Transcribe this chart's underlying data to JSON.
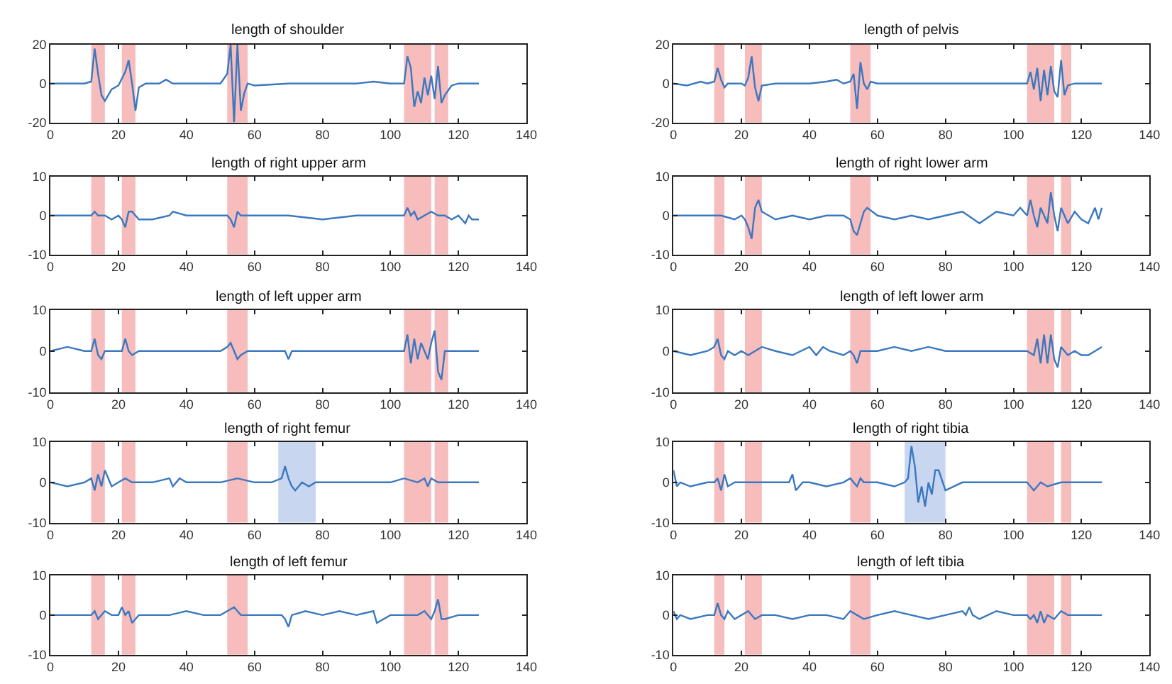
{
  "chart_data": [
    {
      "type": "line",
      "title": "length of shoulder",
      "xlim": [
        0,
        140
      ],
      "xticks": [
        0,
        20,
        40,
        60,
        80,
        100,
        120,
        140
      ],
      "ylim": [
        -20,
        20
      ],
      "yticks": [
        -20,
        0,
        20
      ],
      "bands": [
        {
          "axis": "x",
          "from": 12,
          "to": 16,
          "color": "#f7bcbc"
        },
        {
          "axis": "x",
          "from": 21,
          "to": 25,
          "color": "#f7bcbc"
        },
        {
          "axis": "x",
          "from": 52,
          "to": 58,
          "color": "#f7bcbc"
        },
        {
          "axis": "x",
          "from": 104,
          "to": 112,
          "color": "#f7bcbc"
        },
        {
          "axis": "x",
          "from": 113,
          "to": 117,
          "color": "#f7bcbc"
        }
      ],
      "x": [
        0,
        5,
        10,
        12,
        13,
        14,
        15,
        16,
        18,
        20,
        22,
        23,
        24,
        25,
        26,
        28,
        32,
        34,
        36,
        40,
        45,
        50,
        52,
        53,
        54,
        55,
        56,
        57,
        58,
        60,
        70,
        80,
        90,
        95,
        100,
        104,
        105,
        106,
        107,
        108,
        109,
        110,
        111,
        112,
        113,
        114,
        115,
        116,
        118,
        120,
        126
      ],
      "series": [
        {
          "color": "#3a78c0",
          "values": [
            0,
            0,
            0,
            1,
            18,
            5,
            -6,
            -9,
            -3,
            -1,
            6,
            12,
            0,
            -14,
            -2,
            0,
            0,
            2,
            0,
            0,
            0,
            0,
            5,
            20,
            -20,
            20,
            -14,
            -5,
            0,
            -1,
            0,
            0,
            0,
            1,
            0,
            0,
            14,
            8,
            -12,
            -4,
            -10,
            3,
            -6,
            4,
            -8,
            9,
            -10,
            -6,
            -1,
            0,
            0
          ]
        }
      ]
    },
    {
      "type": "line",
      "title": "length of pelvis",
      "xlim": [
        0,
        140
      ],
      "xticks": [
        0,
        20,
        40,
        60,
        80,
        100,
        120,
        140
      ],
      "ylim": [
        -20,
        20
      ],
      "yticks": [
        -20,
        0,
        20
      ],
      "bands": [
        {
          "axis": "x",
          "from": 12,
          "to": 15,
          "color": "#f7bcbc"
        },
        {
          "axis": "x",
          "from": 21,
          "to": 26,
          "color": "#f7bcbc"
        },
        {
          "axis": "x",
          "from": 52,
          "to": 58,
          "color": "#f7bcbc"
        },
        {
          "axis": "x",
          "from": 104,
          "to": 112,
          "color": "#f7bcbc"
        },
        {
          "axis": "x",
          "from": 114,
          "to": 117,
          "color": "#f7bcbc"
        }
      ],
      "x": [
        0,
        4,
        8,
        10,
        12,
        13,
        14,
        15,
        16,
        20,
        21,
        22,
        23,
        24,
        25,
        26,
        30,
        40,
        45,
        48,
        50,
        52,
        53,
        54,
        55,
        56,
        57,
        58,
        60,
        70,
        80,
        90,
        100,
        104,
        105,
        106,
        107,
        108,
        109,
        110,
        111,
        112,
        113,
        114,
        115,
        116,
        118,
        120,
        126
      ],
      "series": [
        {
          "color": "#3a78c0",
          "values": [
            0,
            -1,
            1,
            0,
            1,
            8,
            2,
            -2,
            0,
            0,
            -1,
            3,
            14,
            -2,
            -9,
            -1,
            0,
            0,
            1,
            2,
            0,
            1,
            5,
            -13,
            11,
            0,
            -3,
            1,
            0,
            0,
            0,
            0,
            0,
            0,
            6,
            -3,
            8,
            -9,
            7,
            -6,
            9,
            -4,
            -7,
            12,
            -6,
            -1,
            0,
            0,
            0
          ]
        }
      ]
    },
    {
      "type": "line",
      "title": "length of right upper arm",
      "xlim": [
        0,
        140
      ],
      "xticks": [
        0,
        20,
        40,
        60,
        80,
        100,
        120,
        140
      ],
      "ylim": [
        -10,
        10
      ],
      "yticks": [
        -10,
        0,
        10
      ],
      "bands": [
        {
          "axis": "x",
          "from": 12,
          "to": 16,
          "color": "#f7bcbc"
        },
        {
          "axis": "x",
          "from": 21,
          "to": 25,
          "color": "#f7bcbc"
        },
        {
          "axis": "x",
          "from": 52,
          "to": 58,
          "color": "#f7bcbc"
        },
        {
          "axis": "x",
          "from": 104,
          "to": 112,
          "color": "#f7bcbc"
        },
        {
          "axis": "x",
          "from": 113,
          "to": 117,
          "color": "#f7bcbc"
        }
      ],
      "x": [
        0,
        5,
        10,
        12,
        13,
        14,
        16,
        18,
        20,
        21,
        22,
        23,
        24,
        26,
        30,
        35,
        36,
        40,
        45,
        50,
        52,
        53,
        54,
        55,
        56,
        60,
        70,
        80,
        90,
        100,
        104,
        105,
        106,
        107,
        108,
        110,
        112,
        114,
        116,
        118,
        120,
        121,
        122,
        123,
        124,
        126
      ],
      "series": [
        {
          "color": "#3a78c0",
          "values": [
            0,
            0,
            0,
            0,
            1,
            0,
            0,
            -1,
            0,
            -1,
            -3,
            1,
            1,
            -1,
            -1,
            0,
            1,
            0,
            0,
            0,
            0,
            -1,
            -3,
            1,
            0,
            0,
            0,
            -1,
            0,
            0,
            0,
            2,
            0,
            1,
            -1,
            0,
            1,
            0,
            0,
            -1,
            0,
            -1,
            -2,
            0,
            -1,
            -1
          ]
        }
      ]
    },
    {
      "type": "line",
      "title": "length of right lower arm",
      "xlim": [
        0,
        140
      ],
      "xticks": [
        0,
        20,
        40,
        60,
        80,
        100,
        120,
        140
      ],
      "ylim": [
        -10,
        10
      ],
      "yticks": [
        -10,
        0,
        10
      ],
      "bands": [
        {
          "axis": "x",
          "from": 12,
          "to": 15,
          "color": "#f7bcbc"
        },
        {
          "axis": "x",
          "from": 21,
          "to": 26,
          "color": "#f7bcbc"
        },
        {
          "axis": "x",
          "from": 52,
          "to": 58,
          "color": "#f7bcbc"
        },
        {
          "axis": "x",
          "from": 104,
          "to": 112,
          "color": "#f7bcbc"
        },
        {
          "axis": "x",
          "from": 114,
          "to": 117,
          "color": "#f7bcbc"
        }
      ],
      "x": [
        0,
        5,
        10,
        14,
        18,
        20,
        21,
        22,
        23,
        24,
        25,
        26,
        30,
        35,
        40,
        45,
        50,
        52,
        53,
        54,
        55,
        56,
        57,
        60,
        65,
        70,
        75,
        80,
        85,
        90,
        95,
        100,
        102,
        104,
        105,
        106,
        107,
        108,
        110,
        111,
        112,
        113,
        114,
        116,
        118,
        120,
        122,
        124,
        125,
        126
      ],
      "series": [
        {
          "color": "#3a78c0",
          "values": [
            0,
            0,
            0,
            0,
            -1,
            0,
            -1,
            -3,
            -6,
            2,
            4,
            1,
            -1,
            0,
            -1,
            0,
            0,
            -1,
            -4,
            -5,
            -2,
            1,
            2,
            0,
            -1,
            0,
            -1,
            0,
            1,
            -2,
            1,
            0,
            2,
            0,
            4,
            0,
            -3,
            2,
            -2,
            6,
            0,
            -4,
            2,
            -2,
            1,
            -1,
            -2,
            2,
            -1,
            2
          ]
        }
      ]
    },
    {
      "type": "line",
      "title": "length of left upper arm",
      "xlim": [
        0,
        140
      ],
      "xticks": [
        0,
        20,
        40,
        60,
        80,
        100,
        120,
        140
      ],
      "ylim": [
        -10,
        10
      ],
      "yticks": [
        -10,
        0,
        10
      ],
      "bands": [
        {
          "axis": "x",
          "from": 12,
          "to": 16,
          "color": "#f7bcbc"
        },
        {
          "axis": "x",
          "from": 21,
          "to": 25,
          "color": "#f7bcbc"
        },
        {
          "axis": "x",
          "from": 52,
          "to": 58,
          "color": "#f7bcbc"
        },
        {
          "axis": "x",
          "from": 104,
          "to": 112,
          "color": "#f7bcbc"
        },
        {
          "axis": "x",
          "from": 113,
          "to": 117,
          "color": "#f7bcbc"
        }
      ],
      "x": [
        0,
        5,
        10,
        12,
        13,
        14,
        15,
        16,
        20,
        21,
        22,
        23,
        24,
        26,
        30,
        40,
        50,
        52,
        53,
        54,
        55,
        56,
        58,
        60,
        68,
        69,
        70,
        71,
        80,
        90,
        100,
        104,
        105,
        106,
        107,
        108,
        109,
        110,
        111,
        112,
        113,
        114,
        115,
        116,
        118,
        120,
        126
      ],
      "series": [
        {
          "color": "#3a78c0",
          "values": [
            0,
            1,
            0,
            0,
            3,
            -1,
            -2,
            0,
            0,
            0,
            3,
            0,
            -1,
            0,
            0,
            0,
            0,
            1,
            2,
            0,
            -2,
            -1,
            0,
            0,
            0,
            0,
            -2,
            0,
            0,
            0,
            0,
            0,
            4,
            -3,
            3,
            -2,
            2,
            0,
            -2,
            2,
            5,
            -5,
            -7,
            0,
            0,
            0,
            0
          ]
        }
      ]
    },
    {
      "type": "line",
      "title": "length of left lower arm",
      "xlim": [
        0,
        140
      ],
      "xticks": [
        0,
        20,
        40,
        60,
        80,
        100,
        120,
        140
      ],
      "ylim": [
        -10,
        10
      ],
      "yticks": [
        -10,
        0,
        10
      ],
      "bands": [
        {
          "axis": "x",
          "from": 12,
          "to": 15,
          "color": "#f7bcbc"
        },
        {
          "axis": "x",
          "from": 21,
          "to": 26,
          "color": "#f7bcbc"
        },
        {
          "axis": "x",
          "from": 52,
          "to": 58,
          "color": "#f7bcbc"
        },
        {
          "axis": "x",
          "from": 104,
          "to": 112,
          "color": "#f7bcbc"
        },
        {
          "axis": "x",
          "from": 114,
          "to": 117,
          "color": "#f7bcbc"
        }
      ],
      "x": [
        0,
        5,
        10,
        12,
        13,
        14,
        15,
        16,
        18,
        20,
        22,
        24,
        26,
        30,
        35,
        40,
        42,
        44,
        46,
        50,
        52,
        53,
        54,
        55,
        56,
        60,
        65,
        70,
        75,
        80,
        85,
        90,
        100,
        104,
        106,
        107,
        108,
        109,
        110,
        111,
        112,
        113,
        114,
        116,
        118,
        120,
        122,
        124,
        126
      ],
      "series": [
        {
          "color": "#3a78c0",
          "values": [
            0,
            -1,
            0,
            1,
            3,
            -1,
            -2,
            0,
            -1,
            0,
            -1,
            0,
            1,
            0,
            -1,
            1,
            -1,
            1,
            0,
            -1,
            0,
            -1,
            -3,
            0,
            0,
            0,
            1,
            0,
            1,
            0,
            0,
            0,
            0,
            0,
            -1,
            3,
            -3,
            4,
            -3,
            4,
            -2,
            -4,
            1,
            -1,
            0,
            -1,
            -1,
            0,
            1
          ]
        }
      ]
    },
    {
      "type": "line",
      "title": "length of right femur",
      "xlim": [
        0,
        140
      ],
      "xticks": [
        0,
        20,
        40,
        60,
        80,
        100,
        120,
        140
      ],
      "ylim": [
        -10,
        10
      ],
      "yticks": [
        -10,
        0,
        10
      ],
      "bands": [
        {
          "axis": "x",
          "from": 12,
          "to": 16,
          "color": "#f7bcbc"
        },
        {
          "axis": "x",
          "from": 21,
          "to": 25,
          "color": "#f7bcbc"
        },
        {
          "axis": "x",
          "from": 52,
          "to": 58,
          "color": "#f7bcbc"
        },
        {
          "axis": "x",
          "from": 67,
          "to": 78,
          "color": "#c8d6f0"
        },
        {
          "axis": "x",
          "from": 104,
          "to": 112,
          "color": "#f7bcbc"
        },
        {
          "axis": "x",
          "from": 113,
          "to": 117,
          "color": "#f7bcbc"
        }
      ],
      "x": [
        0,
        5,
        10,
        12,
        13,
        14,
        15,
        16,
        18,
        20,
        22,
        24,
        26,
        30,
        35,
        36,
        38,
        40,
        45,
        50,
        55,
        60,
        65,
        68,
        69,
        70,
        71,
        72,
        74,
        76,
        78,
        80,
        90,
        100,
        104,
        108,
        110,
        111,
        112,
        114,
        116,
        120,
        126
      ],
      "series": [
        {
          "color": "#3a78c0",
          "values": [
            0,
            -1,
            0,
            1,
            -2,
            2,
            -1,
            3,
            -1,
            0,
            1,
            0,
            0,
            0,
            1,
            -1,
            1,
            0,
            0,
            0,
            1,
            0,
            0,
            1,
            4,
            1,
            -1,
            -2,
            0,
            -1,
            0,
            0,
            0,
            0,
            1,
            0,
            1,
            -1,
            1,
            0,
            0,
            0,
            0
          ]
        }
      ]
    },
    {
      "type": "line",
      "title": "length of right tibia",
      "xlim": [
        0,
        140
      ],
      "xticks": [
        0,
        20,
        40,
        60,
        80,
        100,
        120,
        140
      ],
      "ylim": [
        -10,
        10
      ],
      "yticks": [
        -10,
        0,
        10
      ],
      "bands": [
        {
          "axis": "x",
          "from": 12,
          "to": 15,
          "color": "#f7bcbc"
        },
        {
          "axis": "x",
          "from": 21,
          "to": 26,
          "color": "#f7bcbc"
        },
        {
          "axis": "x",
          "from": 52,
          "to": 58,
          "color": "#f7bcbc"
        },
        {
          "axis": "x",
          "from": 68,
          "to": 80,
          "color": "#c8d6f0"
        },
        {
          "axis": "x",
          "from": 104,
          "to": 112,
          "color": "#f7bcbc"
        },
        {
          "axis": "x",
          "from": 114,
          "to": 117,
          "color": "#f7bcbc"
        }
      ],
      "x": [
        0,
        1,
        2,
        5,
        10,
        12,
        13,
        14,
        15,
        16,
        18,
        20,
        24,
        30,
        34,
        35,
        36,
        38,
        40,
        45,
        50,
        52,
        54,
        55,
        56,
        60,
        65,
        68,
        69,
        70,
        71,
        72,
        73,
        74,
        75,
        76,
        77,
        78,
        80,
        85,
        90,
        100,
        104,
        106,
        108,
        110,
        114,
        116,
        120,
        126
      ],
      "series": [
        {
          "color": "#3a78c0",
          "values": [
            3,
            -1,
            0,
            -1,
            0,
            0,
            1,
            -2,
            2,
            -1,
            0,
            0,
            0,
            0,
            0,
            2,
            -2,
            0,
            0,
            -1,
            0,
            1,
            -1,
            1,
            0,
            0,
            -1,
            0,
            1,
            9,
            4,
            -5,
            -1,
            -6,
            0,
            -3,
            3,
            3,
            -2,
            0,
            0,
            0,
            0,
            -2,
            0,
            -1,
            0,
            0,
            0,
            0
          ]
        }
      ]
    },
    {
      "type": "line",
      "title": "length of left femur",
      "xlim": [
        0,
        140
      ],
      "xticks": [
        0,
        20,
        40,
        60,
        80,
        100,
        120,
        140
      ],
      "ylim": [
        -10,
        10
      ],
      "yticks": [
        -10,
        0,
        10
      ],
      "bands": [
        {
          "axis": "x",
          "from": 12,
          "to": 16,
          "color": "#f7bcbc"
        },
        {
          "axis": "x",
          "from": 21,
          "to": 25,
          "color": "#f7bcbc"
        },
        {
          "axis": "x",
          "from": 52,
          "to": 58,
          "color": "#f7bcbc"
        },
        {
          "axis": "x",
          "from": 104,
          "to": 112,
          "color": "#f7bcbc"
        },
        {
          "axis": "x",
          "from": 113,
          "to": 117,
          "color": "#f7bcbc"
        }
      ],
      "x": [
        0,
        5,
        10,
        12,
        13,
        14,
        16,
        18,
        20,
        21,
        22,
        23,
        24,
        26,
        30,
        35,
        40,
        45,
        50,
        52,
        54,
        56,
        60,
        65,
        68,
        69,
        70,
        71,
        75,
        80,
        85,
        90,
        95,
        96,
        100,
        104,
        108,
        110,
        112,
        113,
        114,
        115,
        116,
        120,
        126
      ],
      "series": [
        {
          "color": "#3a78c0",
          "values": [
            0,
            0,
            0,
            0,
            1,
            -1,
            1,
            0,
            0,
            2,
            0,
            1,
            -2,
            0,
            0,
            0,
            1,
            0,
            0,
            1,
            2,
            0,
            0,
            0,
            0,
            -1,
            -3,
            0,
            1,
            0,
            1,
            0,
            1,
            -2,
            0,
            0,
            0,
            1,
            -1,
            1,
            4,
            -1,
            -1,
            0,
            0
          ]
        }
      ]
    },
    {
      "type": "line",
      "title": "length of left tibia",
      "xlim": [
        0,
        140
      ],
      "xticks": [
        0,
        20,
        40,
        60,
        80,
        100,
        120,
        140
      ],
      "ylim": [
        -10,
        10
      ],
      "yticks": [
        -10,
        0,
        10
      ],
      "bands": [
        {
          "axis": "x",
          "from": 12,
          "to": 15,
          "color": "#f7bcbc"
        },
        {
          "axis": "x",
          "from": 21,
          "to": 26,
          "color": "#f7bcbc"
        },
        {
          "axis": "x",
          "from": 52,
          "to": 58,
          "color": "#f7bcbc"
        },
        {
          "axis": "x",
          "from": 104,
          "to": 112,
          "color": "#f7bcbc"
        },
        {
          "axis": "x",
          "from": 114,
          "to": 117,
          "color": "#f7bcbc"
        }
      ],
      "x": [
        0,
        1,
        2,
        5,
        10,
        12,
        13,
        14,
        15,
        16,
        18,
        20,
        22,
        24,
        26,
        30,
        35,
        40,
        45,
        50,
        52,
        54,
        56,
        60,
        65,
        70,
        75,
        80,
        85,
        86,
        87,
        88,
        90,
        95,
        100,
        104,
        105,
        106,
        107,
        108,
        109,
        110,
        112,
        114,
        116,
        120,
        126
      ],
      "series": [
        {
          "color": "#3a78c0",
          "values": [
            1,
            -1,
            0,
            -1,
            0,
            0,
            3,
            0,
            -1,
            1,
            -1,
            0,
            1,
            -1,
            0,
            0,
            -1,
            0,
            0,
            -1,
            1,
            0,
            -1,
            0,
            1,
            0,
            -1,
            0,
            1,
            0,
            2,
            0,
            -1,
            1,
            0,
            0,
            -1,
            0,
            -2,
            1,
            -2,
            0,
            -1,
            1,
            0,
            0,
            0
          ]
        }
      ]
    }
  ]
}
